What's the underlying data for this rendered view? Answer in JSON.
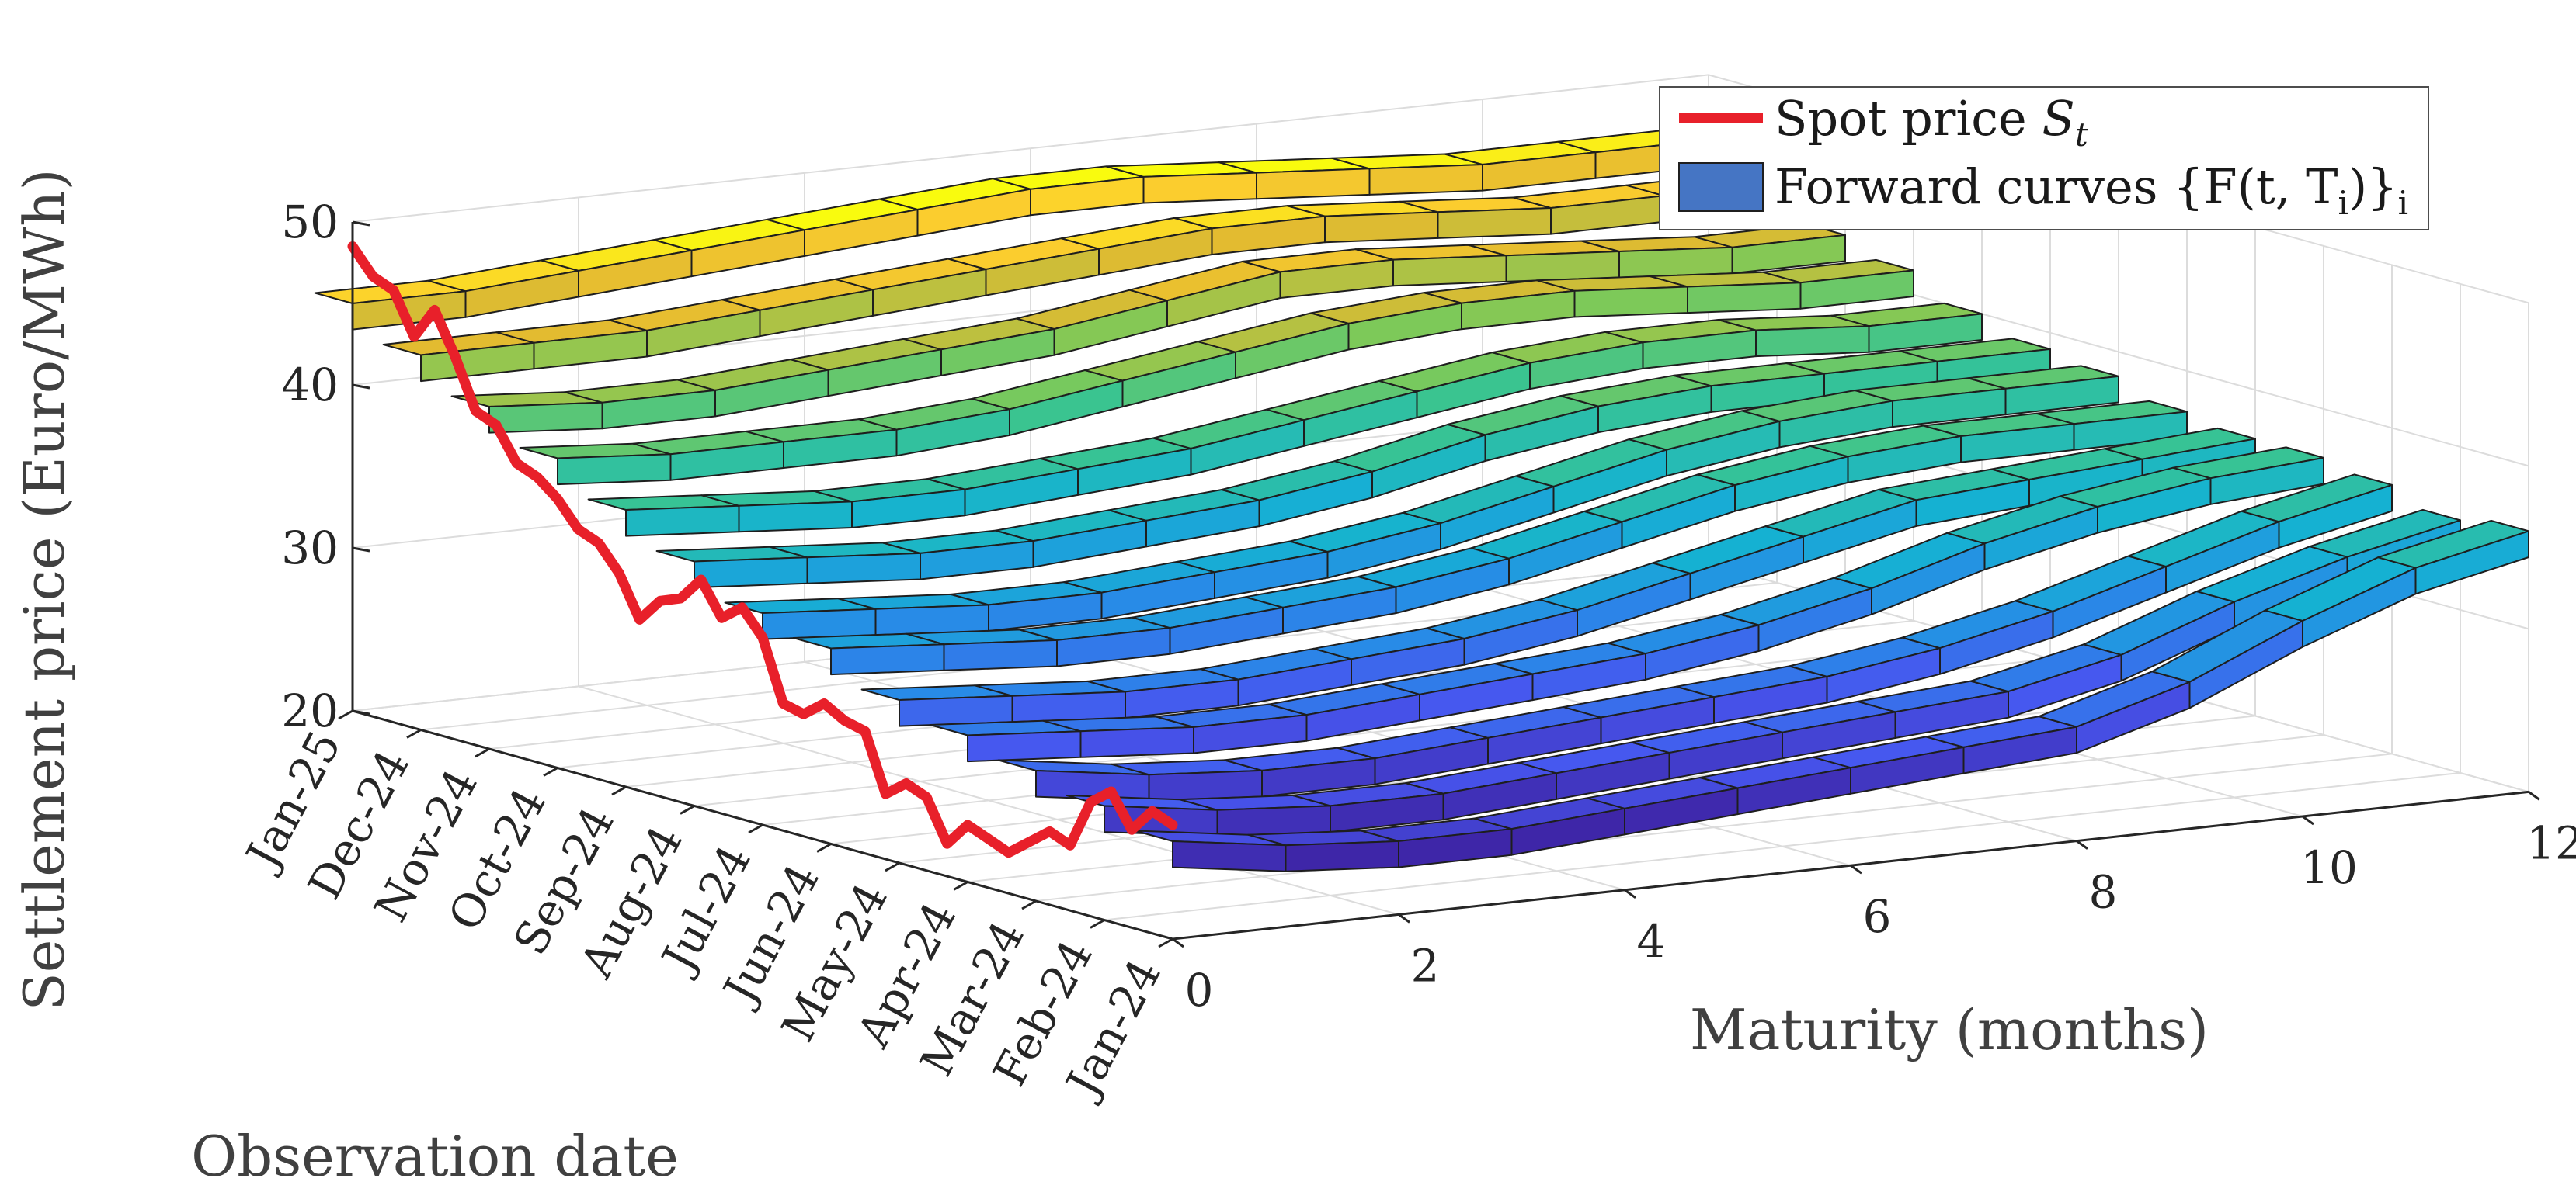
{
  "chart_data": {
    "type": "surface3d",
    "title": "",
    "zlabel": "Settlement price (Euro/MWh)",
    "xlabel": "Maturity (months)",
    "ylabel": "Observation date",
    "zlim": [
      20,
      50
    ],
    "xlim": [
      0,
      12
    ],
    "z_ticks": [
      "20",
      "30",
      "40",
      "50"
    ],
    "x_ticks": [
      "0",
      "2",
      "4",
      "6",
      "8",
      "10",
      "12"
    ],
    "date_ticks": [
      "Jan-24",
      "Feb-24",
      "Mar-24",
      "Apr-24",
      "May-24",
      "Jun-24",
      "Jul-24",
      "Aug-24",
      "Sep-24",
      "Oct-24",
      "Nov-24",
      "Dec-24",
      "Jan-25"
    ],
    "legend": {
      "position": "top-right",
      "spot_label": "Spot price S_t",
      "spot_label_main": "Spot price ",
      "spot_label_sub": "t",
      "forward_label": "Forward curves {F(t,T_i)}_i",
      "forward_label_main": "Forward curves {F(t, T",
      "forward_label_sub1": "i",
      "forward_label_mid": ")}",
      "forward_label_sub2": "i"
    },
    "colors": {
      "spot": "#e8202a",
      "forward": "#4575c4",
      "grid": "#dcdcdc"
    },
    "spot_price": {
      "name": "Spot price",
      "date_index": [
        0,
        0.3,
        0.6,
        0.9,
        1.2,
        1.5,
        1.8,
        2.1,
        2.4,
        2.7,
        3.0,
        3.3,
        3.6,
        3.9,
        4.2,
        4.5,
        4.8,
        5.1,
        5.4,
        5.7,
        6.0,
        6.3,
        6.6,
        6.9,
        7.2,
        7.5,
        7.8,
        8.1,
        8.4,
        8.7,
        9.0,
        9.3,
        9.6,
        9.9,
        10.2,
        10.5,
        10.8,
        11.1,
        11.4,
        11.7,
        12.0
      ],
      "values": [
        27.0,
        27.5,
        26.0,
        28.0,
        27.0,
        24.0,
        24.5,
        23.5,
        22.5,
        23.0,
        23.5,
        22.0,
        24.5,
        25.0,
        24.0,
        27.5,
        27.8,
        28.5,
        27.5,
        27.8,
        31.5,
        33.0,
        32.0,
        34.0,
        32.5,
        32.0,
        30.5,
        33.0,
        34.5,
        35.0,
        36.5,
        37.5,
        38.0,
        40.0,
        40.5,
        43.5,
        46.0,
        44.0,
        46.5,
        47.0,
        48.5
      ]
    },
    "forward_curves": {
      "maturities": [
        0,
        1,
        2,
        3,
        4,
        5,
        6,
        7,
        8,
        9,
        10,
        11,
        12
      ],
      "series": [
        {
          "name": "Jan-24",
          "values": [
            26,
            25,
            24.5,
            24.5,
            25,
            25.5,
            26,
            26.5,
            27,
            29,
            32,
            34.5,
            36
          ]
        },
        {
          "name": "Feb-24",
          "values": [
            27,
            26,
            25.5,
            25.5,
            26,
            26.5,
            27,
            27.5,
            28,
            29.5,
            32,
            34,
            35.5
          ]
        },
        {
          "name": "Mar-24",
          "values": [
            28,
            27,
            26.5,
            26.5,
            27,
            27.5,
            28,
            28.5,
            29.5,
            31,
            33,
            35,
            36.5
          ]
        },
        {
          "name": "Apr-24",
          "values": [
            29,
            28.5,
            28,
            28,
            28.5,
            29,
            29.5,
            30.5,
            32,
            34,
            35.5,
            36.5,
            37
          ]
        },
        {
          "name": "May-24",
          "values": [
            30,
            29.5,
            29,
            29,
            29.5,
            30,
            31,
            32.5,
            34,
            35.5,
            36,
            36.5,
            37
          ]
        },
        {
          "name": "Jun-24",
          "values": [
            32,
            31.5,
            31,
            31,
            31.5,
            32,
            33,
            34.5,
            36,
            37,
            37.5,
            37.5,
            37.5
          ]
        },
        {
          "name": "Jul-24",
          "values": [
            33,
            32.5,
            32,
            32,
            32.5,
            33,
            34,
            35.5,
            37,
            38,
            38.5,
            38.5,
            38.5
          ]
        },
        {
          "name": "Aug-24",
          "values": [
            35,
            34.5,
            34,
            34,
            34.5,
            35,
            36,
            37.5,
            38.5,
            39,
            39,
            39,
            39
          ]
        },
        {
          "name": "Sep-24",
          "values": [
            37,
            36.5,
            36,
            36,
            36.5,
            37,
            38,
            39,
            40,
            40.5,
            40.5,
            40,
            40
          ]
        },
        {
          "name": "Oct-24",
          "values": [
            39,
            38.5,
            38.5,
            38.5,
            39,
            40,
            41,
            42,
            42.5,
            42.5,
            42,
            41.5,
            41.5
          ]
        },
        {
          "name": "Nov-24",
          "values": [
            41,
            40.5,
            40.5,
            41,
            41.5,
            42,
            43,
            44,
            44,
            43.5,
            43,
            42.5,
            42.5
          ]
        },
        {
          "name": "Dec-24",
          "values": [
            43,
            43,
            43,
            43.5,
            44,
            44.5,
            45,
            45.5,
            45.5,
            45,
            44.5,
            44.5,
            44.5
          ]
        },
        {
          "name": "Jan-25",
          "values": [
            45,
            45,
            45.5,
            46,
            46.5,
            47,
            47.5,
            47.5,
            47,
            46.5,
            46,
            46,
            46
          ]
        }
      ]
    }
  }
}
